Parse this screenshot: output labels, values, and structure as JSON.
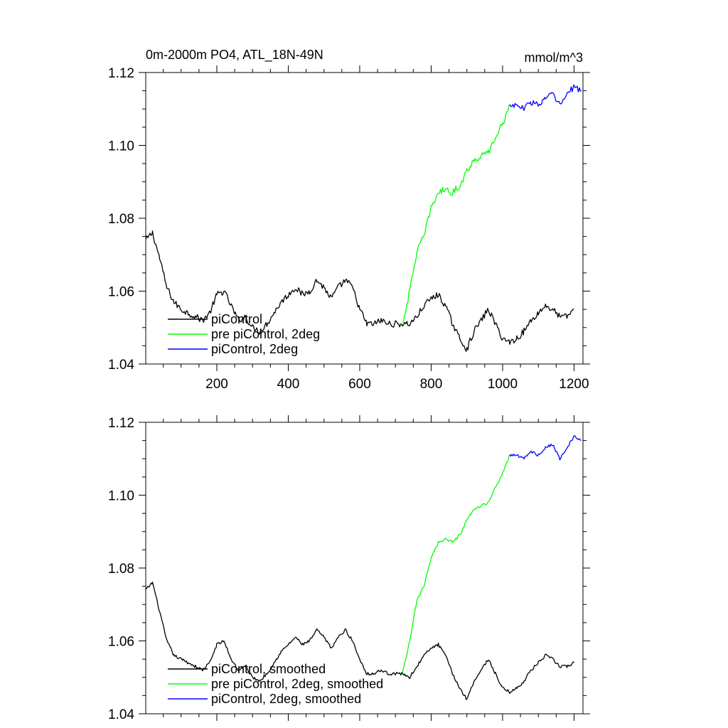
{
  "header": {
    "title": "0m-2000m PO4, ATL_18N-49N",
    "units": "mmol/m^3"
  },
  "colors": {
    "piControl": "#000000",
    "pre_piControl_2deg": "#00ff00",
    "piControl_2deg": "#0000ff"
  },
  "chart_data": [
    {
      "type": "line",
      "title": "0m-2000m PO4, ATL_18N-49N",
      "units": "mmol/m^3",
      "xlim": [
        1,
        1225
      ],
      "ylim": [
        1.04,
        1.12
      ],
      "x_ticks": [
        200,
        400,
        600,
        800,
        1000,
        1200
      ],
      "x_tick_labels": [
        "200",
        "400",
        "600",
        "800",
        "1000",
        "1200"
      ],
      "y_ticks": [
        1.04,
        1.06,
        1.08,
        1.1,
        1.12
      ],
      "y_tick_labels": [
        "1.04",
        "1.06",
        "1.08",
        "1.10",
        "1.12"
      ],
      "legend_position": "bottom-left",
      "series": [
        {
          "name": "piControl",
          "color": "#000000",
          "x": [
            1,
            20,
            40,
            60,
            80,
            100,
            120,
            140,
            160,
            180,
            200,
            220,
            240,
            260,
            280,
            300,
            320,
            340,
            360,
            380,
            400,
            420,
            440,
            460,
            480,
            500,
            520,
            540,
            560,
            580,
            600,
            620,
            640,
            660,
            680,
            700,
            720,
            740,
            760,
            780,
            800,
            820,
            840,
            860,
            880,
            900,
            920,
            940,
            960,
            980,
            1000,
            1020,
            1040,
            1060,
            1080,
            1100,
            1120,
            1140,
            1160,
            1180,
            1200
          ],
          "values": [
            1.074,
            1.076,
            1.069,
            1.061,
            1.057,
            1.055,
            1.054,
            1.053,
            1.052,
            1.054,
            1.059,
            1.06,
            1.056,
            1.052,
            1.053,
            1.05,
            1.049,
            1.051,
            1.054,
            1.057,
            1.059,
            1.061,
            1.059,
            1.06,
            1.063,
            1.061,
            1.058,
            1.061,
            1.063,
            1.061,
            1.055,
            1.051,
            1.051,
            1.052,
            1.051,
            1.051,
            1.051,
            1.051,
            1.053,
            1.056,
            1.058,
            1.059,
            1.056,
            1.051,
            1.047,
            1.044,
            1.049,
            1.052,
            1.055,
            1.051,
            1.047,
            1.046,
            1.047,
            1.049,
            1.052,
            1.054,
            1.056,
            1.055,
            1.053,
            1.053,
            1.055
          ]
        },
        {
          "name": "pre piControl, 2deg",
          "color": "#00ff00",
          "x": [
            720,
            740,
            760,
            780,
            800,
            820,
            840,
            860,
            880,
            900,
            920,
            940,
            960,
            980,
            1000,
            1020
          ],
          "values": [
            1.051,
            1.06,
            1.071,
            1.075,
            1.083,
            1.087,
            1.088,
            1.087,
            1.089,
            1.093,
            1.096,
            1.097,
            1.098,
            1.102,
            1.106,
            1.111
          ]
        },
        {
          "name": "piControl, 2deg",
          "color": "#0000ff",
          "x": [
            1020,
            1040,
            1060,
            1080,
            1100,
            1120,
            1140,
            1160,
            1180,
            1200,
            1220
          ],
          "values": [
            1.111,
            1.111,
            1.11,
            1.112,
            1.111,
            1.113,
            1.114,
            1.111,
            1.114,
            1.116,
            1.115
          ]
        }
      ]
    },
    {
      "type": "line",
      "title": "",
      "units": "",
      "xlim": [
        1,
        1225
      ],
      "ylim": [
        1.04,
        1.12
      ],
      "x_ticks": [
        200,
        400,
        600,
        800,
        1000,
        1200
      ],
      "x_tick_labels": [],
      "y_ticks": [
        1.04,
        1.06,
        1.08,
        1.1,
        1.12
      ],
      "y_tick_labels": [
        "1.04",
        "1.06",
        "1.08",
        "1.10",
        "1.12"
      ],
      "legend_position": "bottom-left",
      "series": [
        {
          "name": "piControl, smoothed",
          "color": "#000000",
          "x": [
            1,
            20,
            40,
            60,
            80,
            100,
            120,
            140,
            160,
            180,
            200,
            220,
            240,
            260,
            280,
            300,
            320,
            340,
            360,
            380,
            400,
            420,
            440,
            460,
            480,
            500,
            520,
            540,
            560,
            580,
            600,
            620,
            640,
            660,
            680,
            700,
            720,
            740,
            760,
            780,
            800,
            820,
            840,
            860,
            880,
            900,
            920,
            940,
            960,
            980,
            1000,
            1020,
            1040,
            1060,
            1080,
            1100,
            1120,
            1140,
            1160,
            1180,
            1200
          ],
          "values": [
            1.074,
            1.076,
            1.068,
            1.06,
            1.056,
            1.055,
            1.054,
            1.053,
            1.052,
            1.054,
            1.059,
            1.06,
            1.055,
            1.052,
            1.053,
            1.05,
            1.049,
            1.051,
            1.054,
            1.057,
            1.059,
            1.061,
            1.059,
            1.06,
            1.063,
            1.061,
            1.058,
            1.061,
            1.063,
            1.06,
            1.055,
            1.051,
            1.051,
            1.052,
            1.051,
            1.051,
            1.051,
            1.05,
            1.053,
            1.056,
            1.058,
            1.059,
            1.056,
            1.051,
            1.047,
            1.044,
            1.049,
            1.052,
            1.055,
            1.051,
            1.047,
            1.046,
            1.047,
            1.049,
            1.052,
            1.054,
            1.056,
            1.055,
            1.053,
            1.053,
            1.054
          ]
        },
        {
          "name": "pre piControl, 2deg, smoothed",
          "color": "#00ff00",
          "x": [
            720,
            740,
            760,
            780,
            800,
            820,
            840,
            860,
            880,
            900,
            920,
            940,
            960,
            980,
            1000,
            1020
          ],
          "values": [
            1.051,
            1.06,
            1.071,
            1.075,
            1.083,
            1.087,
            1.088,
            1.087,
            1.089,
            1.093,
            1.096,
            1.097,
            1.098,
            1.102,
            1.106,
            1.111
          ]
        },
        {
          "name": "piControl, 2deg, smoothed",
          "color": "#0000ff",
          "x": [
            1020,
            1040,
            1060,
            1080,
            1100,
            1120,
            1140,
            1160,
            1180,
            1200,
            1220
          ],
          "values": [
            1.111,
            1.111,
            1.11,
            1.112,
            1.111,
            1.113,
            1.114,
            1.11,
            1.113,
            1.116,
            1.115
          ]
        }
      ]
    }
  ]
}
